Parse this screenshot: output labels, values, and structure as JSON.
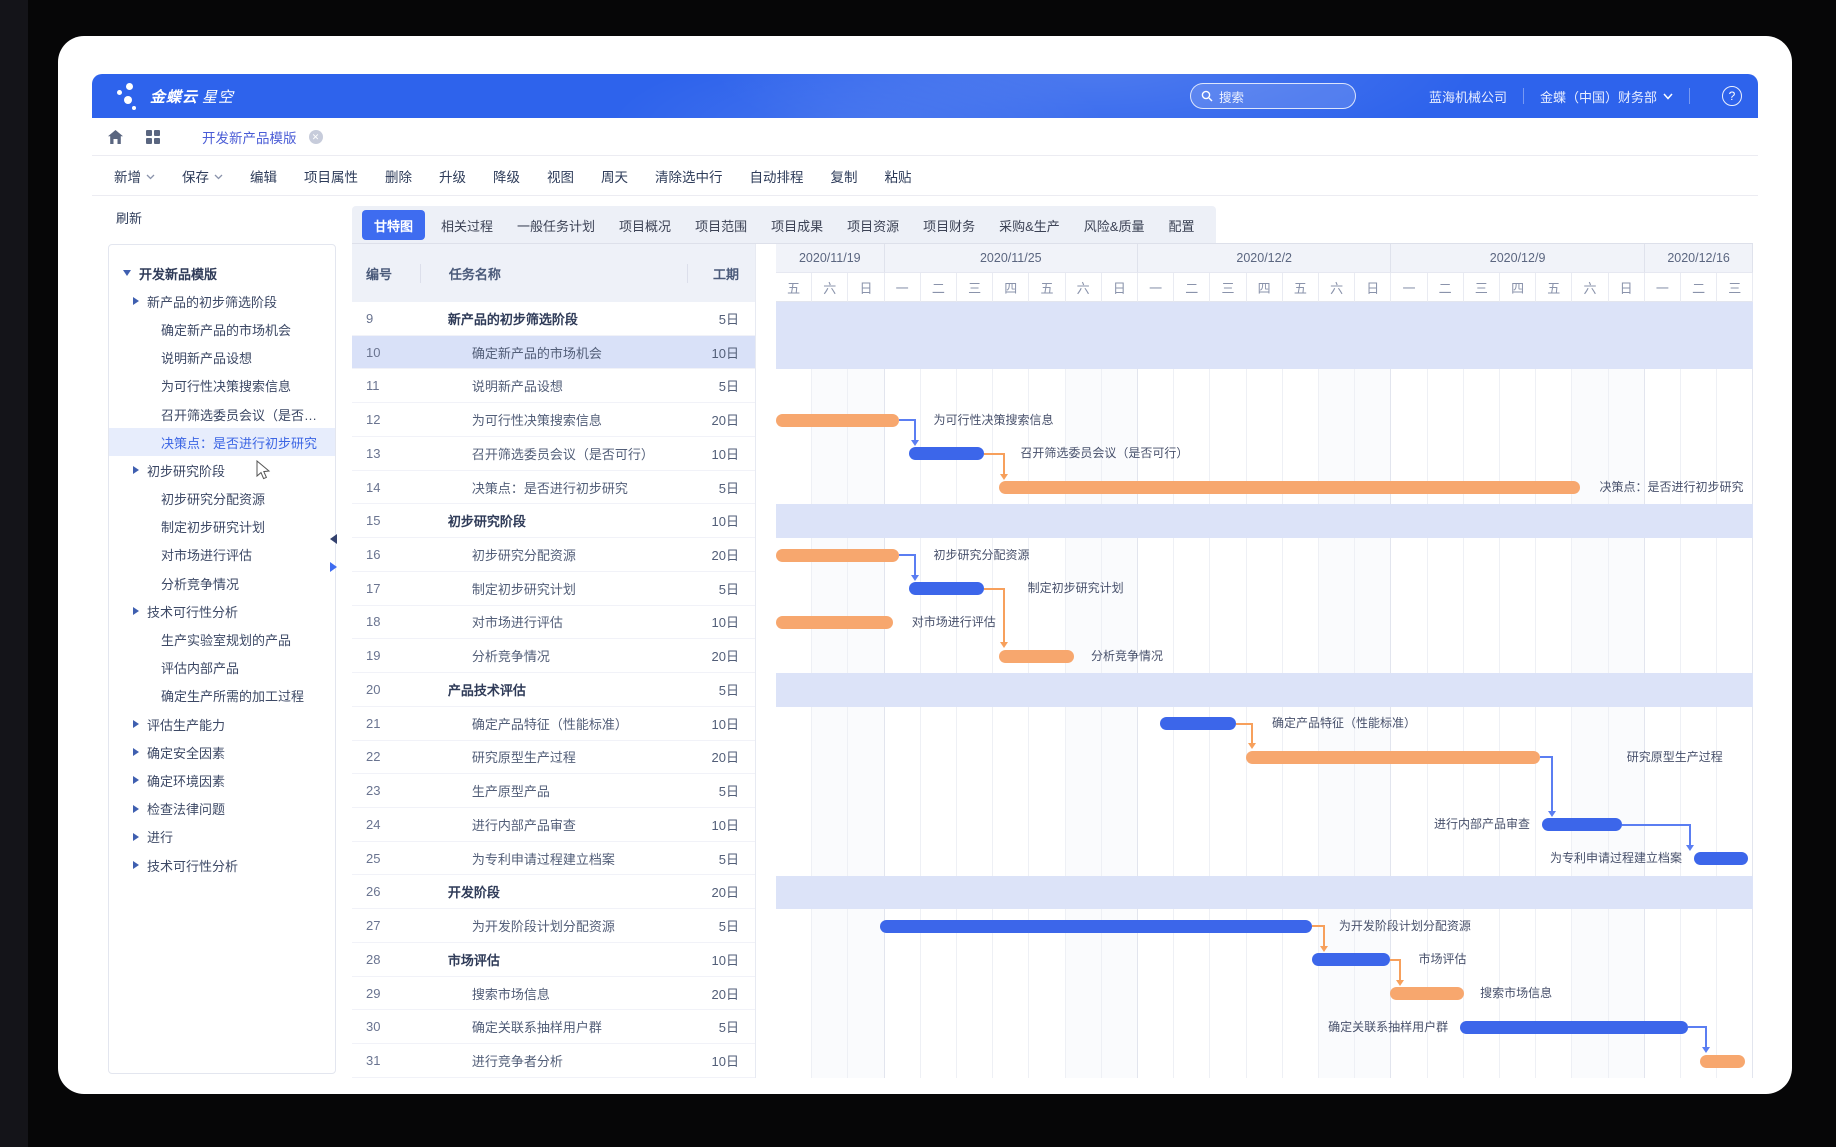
{
  "topbar": {
    "brand_primary": "金蝶云",
    "brand_secondary": "星空",
    "search_placeholder": "搜索",
    "company": "蓝海机械公司",
    "user": "金蝶（中国）财务部",
    "help_label": "?"
  },
  "tabbar": {
    "active_tab": "开发新产品模版"
  },
  "toolbar": {
    "items": [
      {
        "label": "新增",
        "dropdown": true
      },
      {
        "label": "保存",
        "dropdown": true
      },
      {
        "label": "编辑"
      },
      {
        "label": "项目属性"
      },
      {
        "label": "删除"
      },
      {
        "label": "升级"
      },
      {
        "label": "降级"
      },
      {
        "label": "视图"
      },
      {
        "label": "周天"
      },
      {
        "label": "清除选中行"
      },
      {
        "label": "自动排程"
      },
      {
        "label": "复制"
      },
      {
        "label": "粘贴"
      }
    ]
  },
  "sidebar": {
    "refresh_label": "刷新",
    "tree": [
      {
        "label": "开发新品模版",
        "level": 1,
        "caret": "down"
      },
      {
        "label": "新产品的初步筛选阶段",
        "level": 2,
        "caret": "right"
      },
      {
        "label": "确定新产品的市场机会",
        "level": 3
      },
      {
        "label": "说明新产品设想",
        "level": 3
      },
      {
        "label": "为可行性决策搜索信息",
        "level": 3
      },
      {
        "label": "召开筛选委员会议（是否…",
        "level": 3
      },
      {
        "label": "决策点：是否进行初步研究",
        "level": 3,
        "selected": true
      },
      {
        "label": "初步研究阶段",
        "level": 2,
        "caret": "right"
      },
      {
        "label": "初步研究分配资源",
        "level": 3
      },
      {
        "label": "制定初步研究计划",
        "level": 3
      },
      {
        "label": "对市场进行评估",
        "level": 3
      },
      {
        "label": "分析竞争情况",
        "level": 3
      },
      {
        "label": "技术可行性分析",
        "level": 2,
        "caret": "right"
      },
      {
        "label": "生产实验室规划的产品",
        "level": 3
      },
      {
        "label": "评估内部产品",
        "level": 3
      },
      {
        "label": "确定生产所需的加工过程",
        "level": 3
      },
      {
        "label": "评估生产能力",
        "level": 2,
        "caret": "right"
      },
      {
        "label": "确定安全因素",
        "level": 2,
        "caret": "right"
      },
      {
        "label": "确定环境因素",
        "level": 2,
        "caret": "right"
      },
      {
        "label": "检查法律问题",
        "level": 2,
        "caret": "right"
      },
      {
        "label": "进行",
        "level": 2,
        "caret": "right"
      },
      {
        "label": "技术可行性分析",
        "level": 2,
        "caret": "right"
      }
    ]
  },
  "view_tabs": {
    "active": "甘特图",
    "items": [
      "甘特图",
      "相关过程",
      "一般任务计划",
      "项目概况",
      "项目范围",
      "项目成果",
      "项目资源",
      "项目财务",
      "采购&生产",
      "风险&质量",
      "配置"
    ]
  },
  "task_table": {
    "columns": [
      "编号",
      "任务名称",
      "工期"
    ],
    "rows": [
      {
        "id": 9,
        "name": "新产品的初步筛选阶段",
        "duration": "5日",
        "phase": true
      },
      {
        "id": 10,
        "name": "确定新产品的市场机会",
        "duration": "10日",
        "selected": true
      },
      {
        "id": 11,
        "name": "说明新产品设想",
        "duration": "5日"
      },
      {
        "id": 12,
        "name": "为可行性决策搜索信息",
        "duration": "20日"
      },
      {
        "id": 13,
        "name": "召开筛选委员会议（是否可行）",
        "duration": "10日"
      },
      {
        "id": 14,
        "name": "决策点：是否进行初步研究",
        "duration": "5日"
      },
      {
        "id": 15,
        "name": "初步研究阶段",
        "duration": "10日",
        "phase": true
      },
      {
        "id": 16,
        "name": "初步研究分配资源",
        "duration": "20日"
      },
      {
        "id": 17,
        "name": "制定初步研究计划",
        "duration": "5日"
      },
      {
        "id": 18,
        "name": "对市场进行评估",
        "duration": "10日"
      },
      {
        "id": 19,
        "name": "分析竞争情况",
        "duration": "20日"
      },
      {
        "id": 20,
        "name": "产品技术评估",
        "duration": "5日",
        "phase": true
      },
      {
        "id": 21,
        "name": "确定产品特征（性能标准）",
        "duration": "10日"
      },
      {
        "id": 22,
        "name": "研究原型生产过程",
        "duration": "20日"
      },
      {
        "id": 23,
        "name": "生产原型产品",
        "duration": "5日"
      },
      {
        "id": 24,
        "name": "进行内部产品审查",
        "duration": "10日"
      },
      {
        "id": 25,
        "name": "为专利申请过程建立档案",
        "duration": "5日"
      },
      {
        "id": 26,
        "name": "开发阶段",
        "duration": "20日",
        "phase": true
      },
      {
        "id": 27,
        "name": "为开发阶段计划分配资源",
        "duration": "5日"
      },
      {
        "id": 28,
        "name": "市场评估",
        "duration": "10日",
        "phase": true
      },
      {
        "id": 29,
        "name": "搜索市场信息",
        "duration": "20日"
      },
      {
        "id": 30,
        "name": "确定关联系抽样用户群",
        "duration": "5日"
      },
      {
        "id": 31,
        "name": "进行竞争者分析",
        "duration": "10日"
      }
    ]
  },
  "gantt": {
    "date_groups": [
      {
        "label": "2020/11/19",
        "days": [
          "五",
          "六",
          "日"
        ]
      },
      {
        "label": "2020/11/25",
        "days": [
          "一",
          "二",
          "三",
          "四",
          "五",
          "六",
          "日"
        ]
      },
      {
        "label": "2020/12/2",
        "days": [
          "一",
          "二",
          "三",
          "四",
          "五",
          "六",
          "日"
        ]
      },
      {
        "label": "2020/12/9",
        "days": [
          "一",
          "二",
          "三",
          "四",
          "五",
          "六",
          "日"
        ]
      },
      {
        "label": "2020/12/16",
        "days": [
          "一",
          "二",
          "三"
        ]
      }
    ],
    "weekend_days": [
      "六",
      "日"
    ],
    "band_rows": [
      9,
      10,
      15,
      20,
      26
    ],
    "bars": [
      {
        "row": 12,
        "color": "orange",
        "start": 0,
        "end": 3.4,
        "label": "为可行性决策搜索信息",
        "label_side": "right",
        "label_day": 4.35
      },
      {
        "row": 13,
        "color": "blue",
        "start": 3.67,
        "end": 5.75,
        "label": "召开筛选委员会议（是否可行）",
        "label_side": "right",
        "label_day": 6.75
      },
      {
        "row": 14,
        "color": "orange",
        "start": 6.16,
        "end": 22.2,
        "label": "决策点：是否进行初步研究",
        "label_side": "right",
        "label_day": 22.75
      },
      {
        "row": 16,
        "color": "orange",
        "start": 0,
        "end": 3.4,
        "label": "初步研究分配资源",
        "label_side": "right",
        "label_day": 4.35
      },
      {
        "row": 17,
        "color": "blue",
        "start": 3.67,
        "end": 5.75,
        "label": "制定初步研究计划",
        "label_side": "right",
        "label_day": 6.95
      },
      {
        "row": 18,
        "color": "orange",
        "start": 0,
        "end": 3.23,
        "label": "对市场进行评估",
        "label_side": "right",
        "label_day": 3.75
      },
      {
        "row": 19,
        "color": "orange",
        "start": 6.16,
        "end": 8.23,
        "label": "分析竞争情况",
        "label_side": "right",
        "label_day": 8.7
      },
      {
        "row": 21,
        "color": "blue",
        "start": 10.6,
        "end": 12.7,
        "label": "确定产品特征（性能标准）",
        "label_side": "right",
        "label_day": 13.7
      },
      {
        "row": 22,
        "color": "orange",
        "start": 12.98,
        "end": 21.1,
        "label": "研究原型生产过程",
        "label_side": "right",
        "label_day": 23.5
      },
      {
        "row": 24,
        "color": "blue",
        "start": 21.16,
        "end": 23.37,
        "label": "进行内部产品审查",
        "label_side": "left"
      },
      {
        "row": 25,
        "color": "blue",
        "start": 25.36,
        "end": 26.85,
        "label": "为专利申请过程建立档案",
        "label_side": "left"
      },
      {
        "row": 27,
        "color": "blue",
        "start": 2.87,
        "end": 14.8,
        "label": "为开发阶段计划分配资源",
        "label_side": "right",
        "label_day": 15.55
      },
      {
        "row": 28,
        "color": "blue",
        "start": 14.8,
        "end": 16.96,
        "label": "市场评估",
        "label_side": "right",
        "label_day": 17.75
      },
      {
        "row": 29,
        "color": "orange",
        "start": 16.96,
        "end": 19.0,
        "label": "搜索市场信息",
        "label_side": "right",
        "label_day": 19.45
      },
      {
        "row": 30,
        "color": "blue",
        "start": 18.9,
        "end": 25.2,
        "label": "确定关联系抽样用户群",
        "label_side": "left"
      },
      {
        "row": 31,
        "color": "orange",
        "start": 25.52,
        "end": 26.77,
        "label": "",
        "label_side": "right"
      }
    ],
    "connectors": [
      {
        "from": 12,
        "to": 13,
        "color": "blue",
        "x_day": 3.85
      },
      {
        "from": 13,
        "to": 14,
        "color": "orange",
        "x_day": 6.3
      },
      {
        "from": 16,
        "to": 17,
        "color": "blue",
        "x_day": 3.85
      },
      {
        "from": 17,
        "to": 19,
        "color": "orange",
        "x_day": 6.3
      },
      {
        "from": 21,
        "to": 22,
        "color": "orange",
        "x_day": 13.15
      },
      {
        "from": 22,
        "to": 24,
        "color": "blue",
        "x_day": 21.45
      },
      {
        "from": 24,
        "to": 25,
        "color": "blue",
        "x_day": 25.25
      },
      {
        "from": 27,
        "to": 28,
        "color": "orange",
        "x_day": 15.15
      },
      {
        "from": 28,
        "to": 29,
        "color": "orange",
        "x_day": 17.25
      },
      {
        "from": 30,
        "to": 31,
        "color": "blue",
        "x_day": 25.7
      }
    ],
    "colors": {
      "orange": "#f7a76e",
      "blue": "#3c66ea",
      "band": "#dce3f8"
    }
  }
}
